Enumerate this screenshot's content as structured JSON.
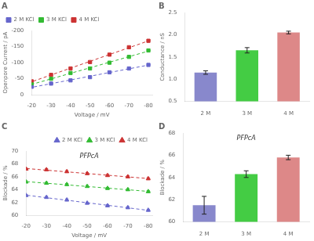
{
  "chart_data": [
    {
      "type": "scatter",
      "title": "A",
      "xlabel": "Voltage / mV",
      "ylabel": "Openpore Current / pA",
      "xlim": [
        -20,
        -82
      ],
      "ylim": [
        0,
        -200
      ],
      "xticks": [
        -20,
        -30,
        -40,
        -50,
        -60,
        -70,
        -80
      ],
      "yticks": [
        0,
        -50,
        -100,
        -150,
        -200
      ],
      "grid": false,
      "legend": "upper left",
      "series": [
        {
          "name": "2 M KCl",
          "color": "#6666cc",
          "marker": "square",
          "line_style": "dashed",
          "x": [
            -20,
            -30,
            -40,
            -50,
            -60,
            -70,
            -80
          ],
          "values": [
            -25,
            -35,
            -45,
            -55,
            -70,
            -82,
            -93
          ],
          "yerr": [
            2,
            2,
            2,
            2,
            2,
            2,
            2
          ],
          "fit": {
            "x": [
              -81,
              -19
            ],
            "values": [
              -93.6178571429,
              -22.0964285714
            ]
          }
        },
        {
          "name": "3 M KCl",
          "color": "#33bb33",
          "marker": "square",
          "line_style": "dashed",
          "x": [
            -20,
            -30,
            -40,
            -50,
            -60,
            -70,
            -80
          ],
          "values": [
            -33,
            -50,
            -68,
            -82,
            -100,
            -118,
            -138
          ],
          "yerr": [
            2,
            2,
            2,
            2,
            2,
            2,
            2
          ],
          "fit": {
            "x": [
              -81,
              -19
            ],
            "values": [
              -137.6178571429,
              -30.6678571429
            ]
          }
        },
        {
          "name": "4 M KCl",
          "color": "#cc3333",
          "marker": "square",
          "line_style": "dashed",
          "x": [
            -20,
            -30,
            -40,
            -50,
            -60,
            -70,
            -80
          ],
          "values": [
            -42,
            -62,
            -82,
            -102,
            -125,
            -148,
            -168
          ],
          "yerr": [
            2,
            2,
            2,
            2,
            2,
            2,
            2
          ],
          "fit": {
            "x": [
              -81,
              -19
            ],
            "values": [
              -169.7964285714,
              -38.4892857143
            ]
          }
        }
      ]
    },
    {
      "type": "bar",
      "title": "B",
      "ylabel": "Conductance / nS",
      "categories": [
        "2 M",
        "3 M",
        "4 M"
      ],
      "values": [
        1.15,
        1.65,
        2.05
      ],
      "errors": [
        0.04,
        0.06,
        0.03
      ],
      "colors": [
        "#8888cc",
        "#44cc44",
        "#dd8888"
      ],
      "ylim": [
        0.5,
        2.5
      ],
      "yticks": [
        0.5,
        {
          "value": 1.0,
          "label": "1.0"
        },
        1.5,
        {
          "value": 2.0,
          "label": "2.0"
        },
        2.5
      ],
      "grid": false
    },
    {
      "type": "scatter",
      "title": "C",
      "annotation": "PFPcA",
      "xlabel": "Voltage / mV",
      "ylabel": "Blockade / %",
      "xlim": [
        -20,
        -82
      ],
      "ylim": [
        60,
        70
      ],
      "xticks": [
        -20,
        -30,
        -40,
        -50,
        -60,
        -70,
        -80
      ],
      "yticks": [
        60,
        62,
        64,
        66,
        68,
        70
      ],
      "grid": false,
      "legend": "upper right",
      "series": [
        {
          "name": "2 M KCl",
          "color": "#6666cc",
          "marker": "triangle",
          "line_style": "dashed",
          "x": [
            -20,
            -30,
            -40,
            -50,
            -60,
            -70,
            -80
          ],
          "values": [
            63.1,
            62.8,
            62.4,
            61.9,
            61.5,
            61.2,
            60.8
          ],
          "yerr": [
            0.15,
            0.15,
            0.15,
            0.15,
            0.15,
            0.15,
            0.15
          ],
          "fit": {
            "x": [
              -81,
              -19
            ],
            "values": [
              60.7392857143,
              63.175
            ]
          }
        },
        {
          "name": "3 M KCl",
          "color": "#33bb33",
          "marker": "triangle",
          "line_style": "dashed",
          "x": [
            -20,
            -30,
            -40,
            -50,
            -60,
            -70,
            -80
          ],
          "values": [
            65.2,
            65.0,
            64.8,
            64.5,
            64.2,
            64.0,
            63.7
          ],
          "yerr": [
            0.15,
            0.15,
            0.15,
            0.15,
            0.15,
            0.15,
            0.15
          ],
          "fit": {
            "x": [
              -81,
              -19
            ],
            "values": [
              63.6996428571,
              65.2717857143
            ]
          }
        },
        {
          "name": "4 M KCl",
          "color": "#cc3333",
          "marker": "triangle",
          "line_style": "dashed",
          "x": [
            -20,
            -30,
            -40,
            -50,
            -60,
            -70,
            -80
          ],
          "values": [
            67.2,
            67.1,
            66.8,
            66.5,
            66.2,
            66.0,
            65.7
          ],
          "yerr": [
            0.15,
            0.15,
            0.15,
            0.15,
            0.15,
            0.15,
            0.15
          ],
          "fit": {
            "x": [
              -81,
              -19
            ],
            "values": [
              65.6917857143,
              67.3082142857
            ]
          }
        }
      ]
    },
    {
      "type": "bar",
      "title": "D",
      "annotation": "PFPcA",
      "ylabel": "Blockade / %",
      "categories": [
        "2 M",
        "3 M",
        "4 M"
      ],
      "values": [
        61.5,
        64.3,
        65.8
      ],
      "errors": [
        0.8,
        0.3,
        0.2
      ],
      "colors": [
        "#8888cc",
        "#44cc44",
        "#dd8888"
      ],
      "ylim": [
        60,
        68
      ],
      "yticks": [
        60,
        62,
        64,
        66,
        68
      ],
      "grid": false
    }
  ]
}
